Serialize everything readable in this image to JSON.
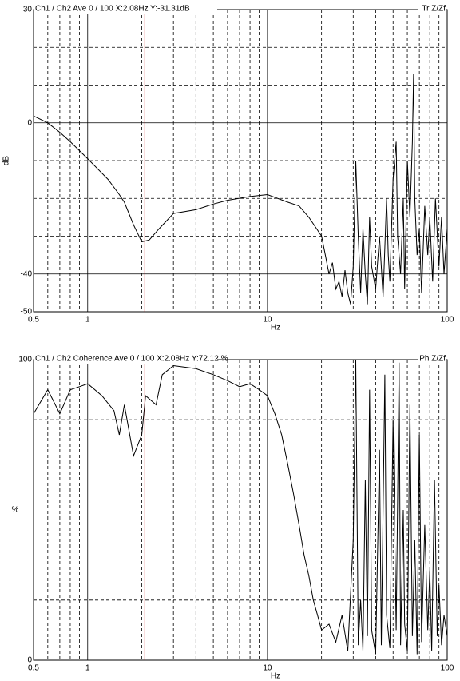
{
  "chart_data": [
    {
      "type": "line",
      "header": "Ch1 / Ch2  Ave 0 / 100  X:2.08Hz  Y:-31.31dB",
      "header_right": "Tr Z/Zf",
      "x_label": "Hz",
      "y_label": "dB",
      "log_x": true,
      "color": "#000000",
      "cursor_color": "#cc0000",
      "cursor_x": 2.08,
      "xlim": [
        0.5,
        100
      ],
      "xticks": [
        0.5,
        1,
        10,
        100
      ],
      "xgrid_minor": [
        0.6,
        0.7,
        0.8,
        0.9,
        2,
        3,
        4,
        5,
        6,
        7,
        8,
        9,
        20,
        30,
        40,
        50,
        60,
        70,
        80,
        90
      ],
      "ylim": [
        -50,
        30
      ],
      "yticks": [
        -50,
        -40,
        0,
        30
      ],
      "ygrid_minor": [
        -30,
        -20,
        -10,
        10,
        20
      ],
      "x": [
        0.5,
        0.6,
        0.7,
        0.8,
        1,
        1.3,
        1.5,
        1.6,
        1.8,
        2,
        2.2,
        2.5,
        3,
        4,
        5,
        6,
        8,
        10,
        13,
        15,
        17,
        20,
        21,
        22,
        23,
        24,
        25,
        26,
        27,
        28,
        29,
        30,
        31,
        32,
        33,
        34,
        35,
        36,
        37,
        38,
        40,
        42,
        44,
        46,
        47,
        48,
        50,
        52,
        53,
        55,
        57,
        58,
        60,
        62,
        64,
        65,
        66,
        68,
        70,
        72,
        75,
        78,
        80,
        83,
        86,
        90,
        93,
        96,
        100
      ],
      "values": [
        1.8,
        0,
        -2.5,
        -5,
        -9.5,
        -15,
        -19,
        -21,
        -27,
        -31.5,
        -31,
        -28,
        -24,
        -23,
        -21.5,
        -20.5,
        -19.5,
        -19,
        -21,
        -22,
        -25,
        -30,
        -35,
        -40,
        -37,
        -44,
        -42,
        -46,
        -39,
        -45,
        -48,
        -38,
        -10,
        -30,
        -45,
        -28,
        -40,
        -48,
        -25,
        -38,
        -44,
        -30,
        -46,
        -20,
        -35,
        -42,
        -15,
        -5,
        -30,
        -40,
        -20,
        -44,
        -10,
        -25,
        -5,
        13,
        -20,
        -35,
        -28,
        -45,
        -22,
        -35,
        -25,
        -42,
        -20,
        -38,
        -25,
        -40,
        -28
      ]
    },
    {
      "type": "line",
      "header": "Ch1 / Ch2  Coherence Ave 0 / 100  X:2.08Hz  Y:72.12 %",
      "header_right": "Ph Z/Zf",
      "x_label": "Hz",
      "y_label": "%",
      "log_x": true,
      "color": "#000000",
      "cursor_color": "#cc0000",
      "cursor_x": 2.08,
      "xlim": [
        0.5,
        100
      ],
      "xticks": [
        0.5,
        1,
        10,
        100
      ],
      "xgrid_minor": [
        0.6,
        0.7,
        0.8,
        0.9,
        2,
        3,
        4,
        5,
        6,
        7,
        8,
        9,
        20,
        30,
        40,
        50,
        60,
        70,
        80,
        90
      ],
      "ylim": [
        0,
        100
      ],
      "yticks": [
        0,
        100
      ],
      "ygrid_minor": [
        20,
        40,
        60,
        80
      ],
      "x": [
        0.5,
        0.6,
        0.7,
        0.8,
        0.9,
        1,
        1.2,
        1.4,
        1.5,
        1.6,
        1.8,
        2,
        2.1,
        2.4,
        2.6,
        3,
        4,
        5,
        6,
        7,
        8,
        9,
        10,
        11,
        12,
        13,
        14,
        15,
        16,
        17,
        18,
        19,
        20,
        22,
        24,
        26,
        28,
        30,
        31,
        32,
        33,
        34,
        35,
        36,
        37,
        38,
        40,
        42,
        43,
        45,
        46,
        48,
        50,
        52,
        54,
        55,
        57,
        58,
        60,
        62,
        64,
        66,
        68,
        70,
        72,
        75,
        78,
        80,
        82,
        85,
        88,
        90,
        93,
        96,
        100
      ],
      "values": [
        82,
        90,
        82,
        90,
        91,
        92,
        88,
        83,
        75,
        85,
        68,
        75,
        88,
        85,
        95,
        98,
        97,
        95,
        93,
        91,
        92,
        90,
        88,
        82,
        75,
        65,
        55,
        45,
        35,
        28,
        20,
        15,
        10,
        12,
        6,
        15,
        3,
        40,
        100,
        5,
        20,
        3,
        60,
        8,
        90,
        10,
        2,
        70,
        5,
        95,
        15,
        4,
        80,
        10,
        99,
        5,
        50,
        12,
        3,
        85,
        8,
        40,
        2,
        75,
        6,
        45,
        10,
        30,
        3,
        60,
        8,
        25,
        5,
        15,
        8
      ]
    }
  ]
}
